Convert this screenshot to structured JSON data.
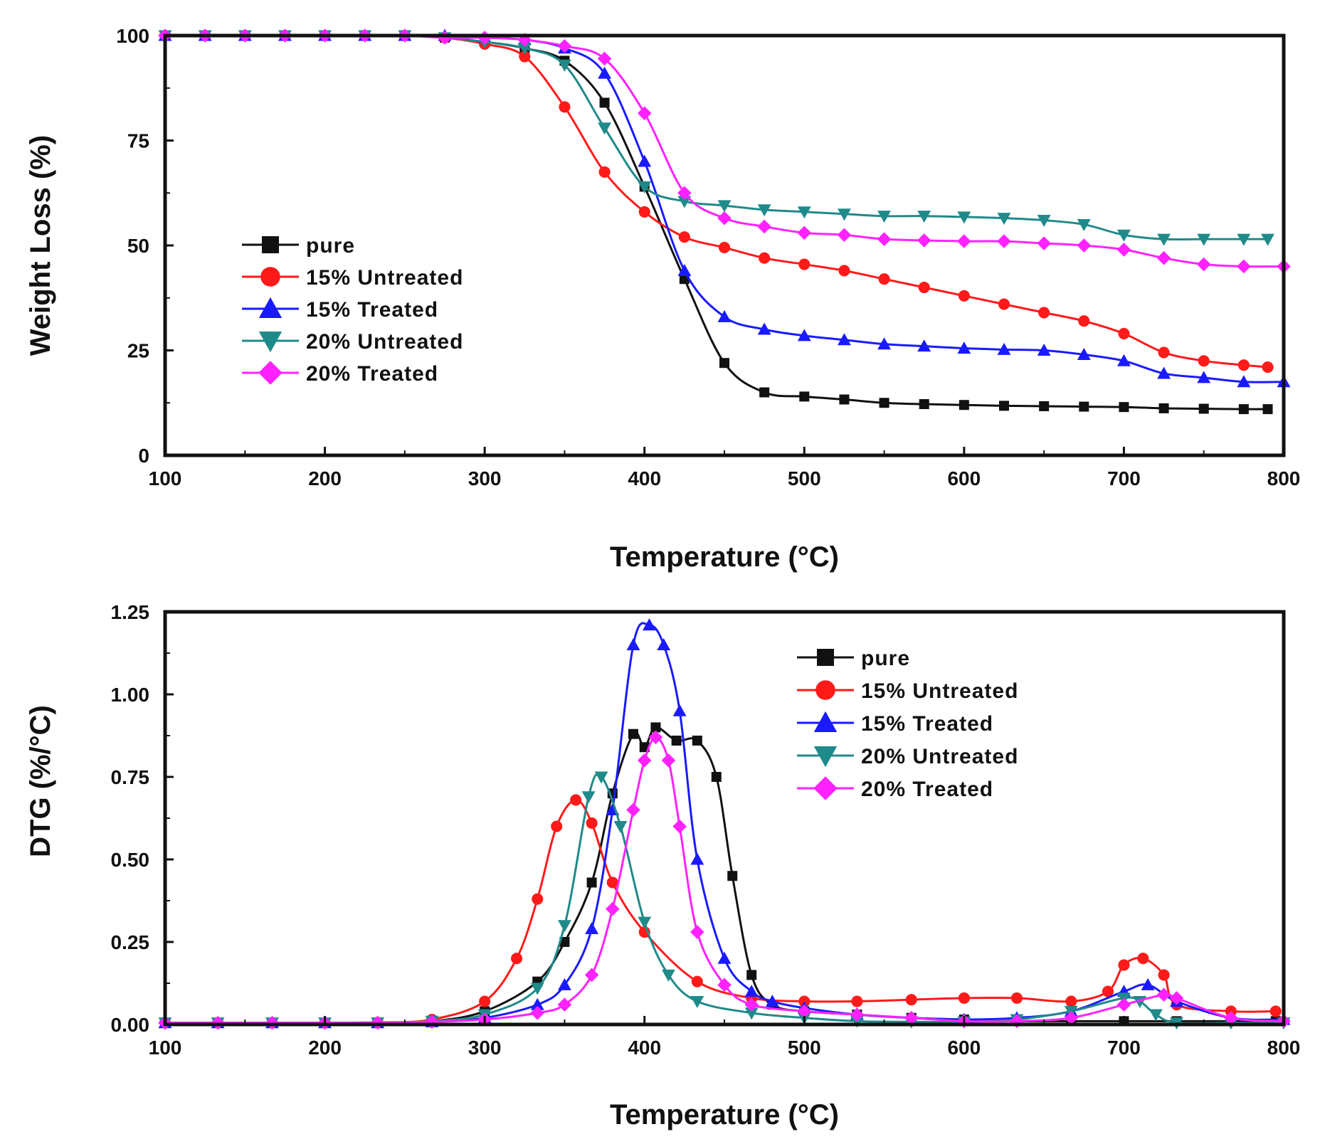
{
  "colors": {
    "pure": "#111111",
    "untreated15": "#ff1a1a",
    "treated15": "#1a1aff",
    "untreated20": "#1f8a8a",
    "treated20": "#ff22ff"
  },
  "chart_data": [
    {
      "type": "line",
      "title": "",
      "xlabel": "Temperature (°C)",
      "ylabel": "Weight Loss (%)",
      "xlim": [
        100,
        800
      ],
      "ylim": [
        0,
        100
      ],
      "xticks": [
        "100",
        "200",
        "300",
        "400",
        "500",
        "600",
        "700",
        "800"
      ],
      "yticks": [
        "0",
        "25",
        "50",
        "75",
        "100"
      ],
      "legend_position": "center-left",
      "series": [
        {
          "name": "pure",
          "marker": "square",
          "color_key": "pure",
          "x": [
            100,
            125,
            150,
            175,
            200,
            225,
            250,
            275,
            300,
            325,
            350,
            375,
            400,
            425,
            450,
            475,
            500,
            525,
            550,
            575,
            600,
            625,
            650,
            675,
            700,
            725,
            750,
            775,
            790
          ],
          "y": [
            100,
            100,
            100,
            100,
            100,
            100,
            100,
            99.5,
            98.5,
            97,
            94,
            84,
            64,
            42,
            22,
            15,
            14,
            13.3,
            12.5,
            12.2,
            12,
            11.8,
            11.7,
            11.6,
            11.5,
            11.2,
            11.1,
            11,
            11
          ]
        },
        {
          "name": "15% Untreated",
          "marker": "circle",
          "color_key": "untreated15",
          "x": [
            100,
            125,
            150,
            175,
            200,
            225,
            250,
            275,
            300,
            325,
            350,
            375,
            400,
            425,
            450,
            475,
            500,
            525,
            550,
            575,
            600,
            625,
            650,
            675,
            700,
            725,
            750,
            775,
            790
          ],
          "y": [
            100,
            100,
            100,
            100,
            100,
            100,
            100,
            99.5,
            98,
            95,
            83,
            67.5,
            58,
            52,
            49.5,
            47,
            45.5,
            44,
            42,
            40,
            38,
            36,
            34,
            32,
            29,
            24.5,
            22.5,
            21.5,
            21
          ]
        },
        {
          "name": "15% Treated",
          "marker": "triangle-up",
          "color_key": "treated15",
          "x": [
            100,
            125,
            150,
            175,
            200,
            225,
            250,
            275,
            300,
            325,
            350,
            375,
            400,
            425,
            450,
            475,
            500,
            525,
            550,
            575,
            600,
            625,
            650,
            675,
            700,
            725,
            750,
            775,
            800
          ],
          "y": [
            100,
            100,
            100,
            100,
            100,
            100,
            100,
            100,
            99.5,
            99,
            97,
            91,
            70,
            44,
            33,
            30,
            28.5,
            27.5,
            26.5,
            26,
            25.5,
            25.2,
            25,
            24,
            22.5,
            19.5,
            18.5,
            17.5,
            17.5
          ]
        },
        {
          "name": "20% Untreated",
          "marker": "triangle-down",
          "color_key": "untreated20",
          "x": [
            100,
            125,
            150,
            175,
            200,
            225,
            250,
            275,
            300,
            325,
            350,
            375,
            400,
            425,
            450,
            475,
            500,
            525,
            550,
            575,
            600,
            625,
            650,
            675,
            700,
            725,
            750,
            775,
            790
          ],
          "y": [
            100,
            100,
            100,
            100,
            100,
            100,
            100,
            99.5,
            98.5,
            97,
            93,
            78,
            64,
            60.5,
            59.5,
            58.5,
            58,
            57.5,
            57,
            57,
            56.8,
            56.5,
            56,
            55,
            52.5,
            51.5,
            51.5,
            51.5,
            51.5
          ]
        },
        {
          "name": "20% Treated",
          "marker": "diamond",
          "color_key": "treated20",
          "x": [
            100,
            125,
            150,
            175,
            200,
            225,
            250,
            275,
            300,
            325,
            350,
            375,
            400,
            425,
            450,
            475,
            500,
            525,
            550,
            575,
            600,
            625,
            650,
            675,
            700,
            725,
            750,
            775,
            800
          ],
          "y": [
            100,
            100,
            100,
            100,
            100,
            100,
            100,
            99.5,
            99.5,
            99,
            97.5,
            94.5,
            81.5,
            62.5,
            56.5,
            54.5,
            53,
            52.5,
            51.5,
            51.2,
            51,
            51,
            50.5,
            50,
            49,
            47,
            45.5,
            45,
            45
          ]
        }
      ]
    },
    {
      "type": "line",
      "title": "",
      "xlabel": "Temperature (°C)",
      "ylabel": "DTG (%/°C)",
      "xlim": [
        100,
        800
      ],
      "ylim": [
        0,
        1.25
      ],
      "xticks": [
        "100",
        "200",
        "300",
        "400",
        "500",
        "600",
        "700",
        "800"
      ],
      "yticks": [
        "0.00",
        "0.25",
        "0.50",
        "0.75",
        "1.00",
        "1.25"
      ],
      "legend_position": "top-right",
      "series": [
        {
          "name": "pure",
          "marker": "square",
          "color_key": "pure",
          "x": [
            100,
            133,
            167,
            200,
            233,
            267,
            300,
            333,
            350,
            367,
            380,
            393,
            400,
            407,
            420,
            433,
            445,
            455,
            467,
            480,
            500,
            533,
            567,
            600,
            633,
            667,
            700,
            733,
            767,
            795
          ],
          "y": [
            0.005,
            0.005,
            0.005,
            0.005,
            0.006,
            0.01,
            0.04,
            0.13,
            0.25,
            0.43,
            0.7,
            0.88,
            0.84,
            0.9,
            0.86,
            0.86,
            0.75,
            0.45,
            0.15,
            0.06,
            0.04,
            0.03,
            0.02,
            0.015,
            0.01,
            0.01,
            0.01,
            0.01,
            0.01,
            0.01
          ]
        },
        {
          "name": "15% Untreated",
          "marker": "circle",
          "color_key": "untreated15",
          "x": [
            100,
            133,
            167,
            200,
            233,
            267,
            300,
            320,
            333,
            345,
            357,
            367,
            380,
            400,
            433,
            467,
            500,
            533,
            567,
            600,
            633,
            667,
            690,
            700,
            712,
            725,
            733,
            767,
            795
          ],
          "y": [
            0.005,
            0.005,
            0.005,
            0.005,
            0.006,
            0.015,
            0.07,
            0.2,
            0.38,
            0.6,
            0.68,
            0.61,
            0.43,
            0.28,
            0.13,
            0.08,
            0.07,
            0.07,
            0.075,
            0.08,
            0.08,
            0.07,
            0.1,
            0.18,
            0.2,
            0.15,
            0.06,
            0.04,
            0.04
          ]
        },
        {
          "name": "15% Treated",
          "marker": "triangle-up",
          "color_key": "treated15",
          "x": [
            100,
            133,
            167,
            200,
            233,
            267,
            300,
            333,
            350,
            367,
            380,
            393,
            403,
            412,
            422,
            433,
            450,
            467,
            480,
            500,
            533,
            567,
            600,
            633,
            667,
            700,
            715,
            733,
            767,
            800
          ],
          "y": [
            0.005,
            0.005,
            0.005,
            0.005,
            0.005,
            0.008,
            0.02,
            0.06,
            0.12,
            0.29,
            0.65,
            1.15,
            1.21,
            1.15,
            0.95,
            0.5,
            0.2,
            0.1,
            0.07,
            0.05,
            0.03,
            0.02,
            0.015,
            0.02,
            0.04,
            0.1,
            0.12,
            0.07,
            0.02,
            0.015
          ]
        },
        {
          "name": "20% Untreated",
          "marker": "triangle-down",
          "color_key": "untreated20",
          "x": [
            100,
            133,
            167,
            200,
            233,
            267,
            300,
            333,
            350,
            365,
            373,
            385,
            400,
            415,
            433,
            467,
            500,
            533,
            567,
            600,
            633,
            667,
            700,
            710,
            720,
            733,
            767,
            800
          ],
          "y": [
            0.005,
            0.005,
            0.005,
            0.005,
            0.005,
            0.01,
            0.03,
            0.11,
            0.3,
            0.69,
            0.75,
            0.6,
            0.31,
            0.15,
            0.07,
            0.035,
            0.02,
            0.01,
            0.008,
            0.008,
            0.015,
            0.04,
            0.08,
            0.07,
            0.03,
            0.005,
            0.005,
            0.005
          ]
        },
        {
          "name": "20% Treated",
          "marker": "diamond",
          "color_key": "treated20",
          "x": [
            100,
            133,
            167,
            200,
            233,
            267,
            300,
            333,
            350,
            367,
            380,
            393,
            400,
            407,
            415,
            422,
            433,
            450,
            467,
            500,
            533,
            567,
            600,
            633,
            667,
            700,
            725,
            733,
            767,
            800
          ],
          "y": [
            0.005,
            0.005,
            0.005,
            0.005,
            0.005,
            0.008,
            0.015,
            0.035,
            0.06,
            0.15,
            0.35,
            0.65,
            0.8,
            0.87,
            0.8,
            0.6,
            0.28,
            0.12,
            0.06,
            0.04,
            0.03,
            0.02,
            0.01,
            0.01,
            0.02,
            0.06,
            0.09,
            0.08,
            0.02,
            0.01
          ]
        }
      ]
    }
  ]
}
